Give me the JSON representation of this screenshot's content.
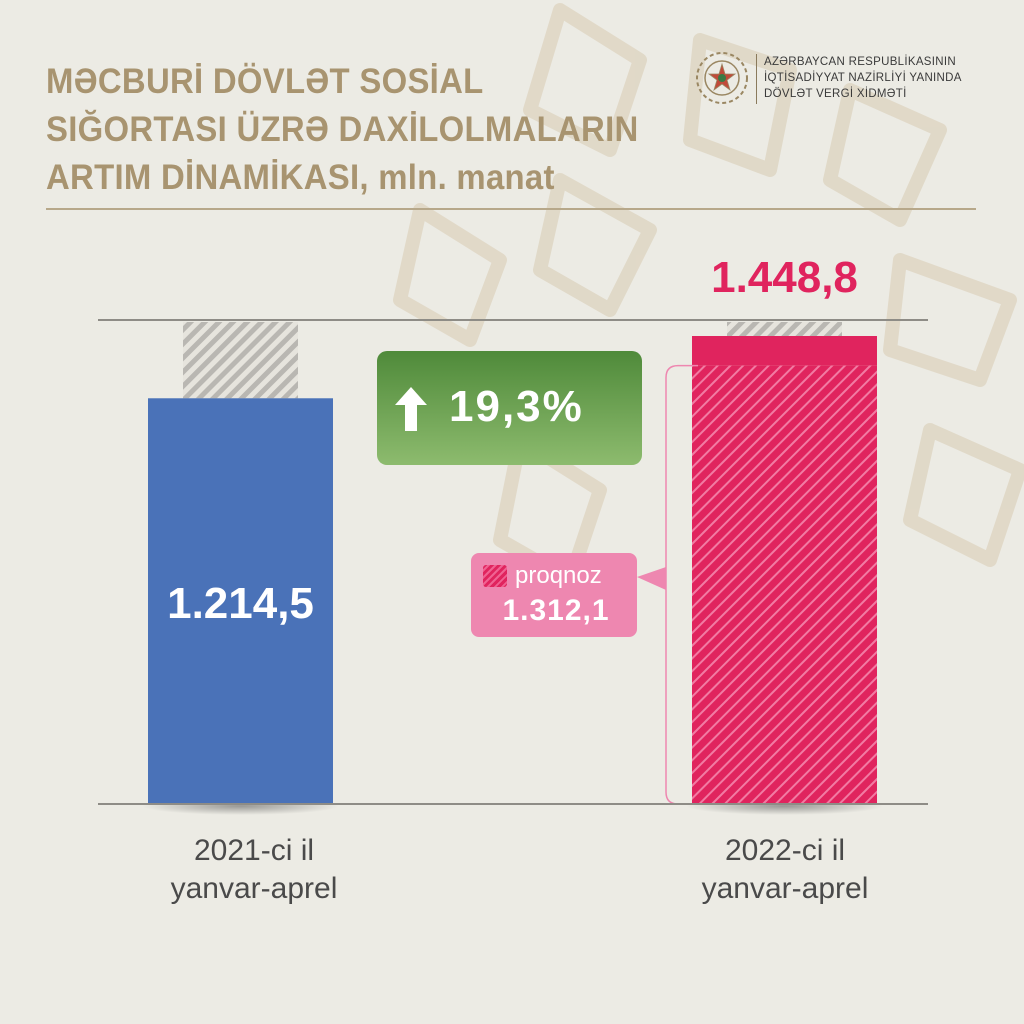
{
  "title_lines": [
    "MƏCBURİ DÖVLƏT SOSİAL",
    "SIĞORTASI ÜZRƏ DAXİLOLMALARIN",
    "ARTIM DİNAMİKASI, mln. manat"
  ],
  "org": {
    "lines": [
      "AZƏRBAYCAN RESPUBLİKASININ",
      "İQTİSADİYYAT NAZİRLİYİ YANINDA",
      "DÖVLƏT VERGİ XİDMƏTİ"
    ],
    "emblem_icon": "state-emblem-icon"
  },
  "colors": {
    "bar_2021": "#4a72b8",
    "bar_2022": "#e0245e",
    "growth_badge": "#5a9443",
    "forecast_badge": "#ee87b0",
    "title": "#a89470"
  },
  "growth": {
    "icon": "arrow-up-icon",
    "value": "19,3%"
  },
  "forecast": {
    "label": "proqnoz",
    "value": "1.312,1"
  },
  "chart_data": {
    "type": "bar",
    "categories": [
      "2021-ci il yanvar-aprel",
      "2022-ci il yanvar-aprel"
    ],
    "category_lines": [
      [
        "2021-ci il",
        "yanvar-aprel"
      ],
      [
        "2022-ci il",
        "yanvar-aprel"
      ]
    ],
    "values": [
      1214.5,
      1448.8
    ],
    "value_labels": [
      "1.214,5",
      "1.448,8"
    ],
    "forecast": {
      "category": "2022-ci il yanvar-aprel",
      "value": 1312.1,
      "label": "proqnoz"
    },
    "growth_percent": 19.3,
    "title": "MƏCBURİ DÖVLƏT SOSİAL SIĞORTASI ÜZRƏ DAXİLOLMALARIN ARTIM DİNAMİKASI, mln. manat",
    "xlabel": "",
    "ylabel": "",
    "ylim": [
      0,
      1500
    ],
    "grid": false,
    "legend": "center"
  }
}
